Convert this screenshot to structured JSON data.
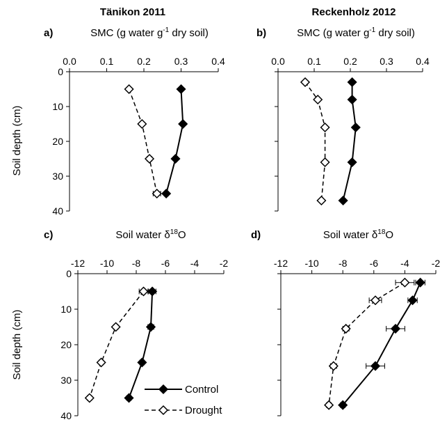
{
  "column_titles": [
    "Tänikon 2011",
    "Reckenholz 2012"
  ],
  "y_axis_label": "Soil depth (cm)",
  "legend": {
    "control": "Control",
    "drought": "Drought",
    "position": "bottom-right of panel c"
  },
  "colors": {
    "control": "#000000",
    "drought": "#000000",
    "axis": "#000000"
  },
  "chart_data": [
    {
      "id": "a",
      "type": "line",
      "panel_label": "a)",
      "title_main": "SMC (g water g",
      "title_sup": "-1",
      "title_tail": " dry soil)",
      "xlim": [
        0,
        0.4
      ],
      "xticks": [
        "0.0",
        "0.1",
        "0.2",
        "0.3",
        "0.4"
      ],
      "xtick_values": [
        0,
        0.1,
        0.2,
        0.3,
        0.4
      ],
      "ylim": [
        0,
        40
      ],
      "yticks": [
        "0",
        "10",
        "20",
        "30",
        "40"
      ],
      "ytick_values": [
        0,
        10,
        20,
        30,
        40
      ],
      "show_ytick_labels": true,
      "x_axis_position": "top",
      "grid": false,
      "series": [
        {
          "name": "Control",
          "x": [
            0.3,
            0.305,
            0.285,
            0.26
          ],
          "y": [
            5,
            15,
            25,
            35
          ],
          "xerr": [
            0.004,
            0.004,
            0.005,
            0.005
          ]
        },
        {
          "name": "Drought",
          "x": [
            0.16,
            0.195,
            0.215,
            0.235
          ],
          "y": [
            5,
            15,
            25,
            35
          ],
          "xerr": [
            0.004,
            0.004,
            0.006,
            0.01
          ]
        }
      ]
    },
    {
      "id": "b",
      "type": "line",
      "panel_label": "b)",
      "title_main": "SMC (g water g",
      "title_sup": "-1",
      "title_tail": " dry soil)",
      "xlim": [
        0,
        0.4
      ],
      "xticks": [
        "0.0",
        "0.1",
        "0.2",
        "0.3",
        "0.4"
      ],
      "xtick_values": [
        0,
        0.1,
        0.2,
        0.3,
        0.4
      ],
      "ylim": [
        0,
        40
      ],
      "yticks": [
        "",
        "",
        "",
        "",
        ""
      ],
      "ytick_values": [
        0,
        10,
        20,
        30,
        40
      ],
      "show_ytick_labels": false,
      "x_axis_position": "top",
      "grid": false,
      "series": [
        {
          "name": "Control",
          "x": [
            0.205,
            0.205,
            0.215,
            0.205,
            0.18
          ],
          "y": [
            3,
            8,
            16,
            26,
            37
          ],
          "xerr": [
            0.003,
            0.003,
            0.004,
            0.004,
            0.004
          ]
        },
        {
          "name": "Drought",
          "x": [
            0.075,
            0.11,
            0.13,
            0.13,
            0.12
          ],
          "y": [
            3,
            8,
            16,
            26,
            37
          ],
          "xerr": [
            0.004,
            0.004,
            0.004,
            0.004,
            0.004
          ]
        }
      ]
    },
    {
      "id": "c",
      "type": "line",
      "panel_label": "c)",
      "title_main": "Soil water δ",
      "title_sup": "18",
      "title_tail": "O",
      "xlim": [
        -12,
        -2
      ],
      "xticks": [
        "-12",
        "-10",
        "-8",
        "-6",
        "-4",
        "-2"
      ],
      "xtick_values": [
        -12,
        -10,
        -8,
        -6,
        -4,
        -2
      ],
      "ylim": [
        0,
        40
      ],
      "yticks": [
        "0",
        "10",
        "20",
        "30",
        "40"
      ],
      "ytick_values": [
        0,
        10,
        20,
        30,
        40
      ],
      "show_ytick_labels": true,
      "x_axis_position": "top",
      "grid": false,
      "series": [
        {
          "name": "Control",
          "x": [
            -6.9,
            -7.0,
            -7.6,
            -8.5
          ],
          "y": [
            5,
            15,
            25,
            35
          ],
          "xerr": [
            0.25,
            0.2,
            0.15,
            0.15
          ]
        },
        {
          "name": "Drought",
          "x": [
            -7.5,
            -9.4,
            -10.4,
            -11.2
          ],
          "y": [
            5,
            15,
            25,
            35
          ],
          "xerr": [
            0.3,
            0.15,
            0.15,
            0.15
          ]
        }
      ]
    },
    {
      "id": "d",
      "type": "line",
      "panel_label": "d)",
      "title_main": "Soil water δ",
      "title_sup": "18",
      "title_tail": "O",
      "xlim": [
        -12,
        -2
      ],
      "xticks": [
        "-12",
        "-10",
        "-8",
        "-6",
        "-4",
        "-2"
      ],
      "xtick_values": [
        -12,
        -10,
        -8,
        -6,
        -4,
        -2
      ],
      "ylim": [
        0,
        40
      ],
      "yticks": [
        "",
        "",
        "",
        "",
        ""
      ],
      "ytick_values": [
        0,
        10,
        20,
        30,
        40
      ],
      "show_ytick_labels": false,
      "x_axis_position": "top",
      "grid": false,
      "series": [
        {
          "name": "Control",
          "x": [
            -3.0,
            -3.5,
            -4.6,
            -5.9,
            -8.0
          ],
          "y": [
            2.5,
            7.5,
            15.5,
            26,
            37
          ],
          "xerr": [
            0.3,
            0.3,
            0.6,
            0.6,
            0.15
          ]
        },
        {
          "name": "Drought",
          "x": [
            -4.0,
            -5.9,
            -7.8,
            -8.6,
            -8.9
          ],
          "y": [
            2.5,
            7.5,
            15.5,
            26,
            37
          ],
          "xerr": [
            0.6,
            0.4,
            0.2,
            0.2,
            0.15
          ]
        }
      ]
    }
  ]
}
